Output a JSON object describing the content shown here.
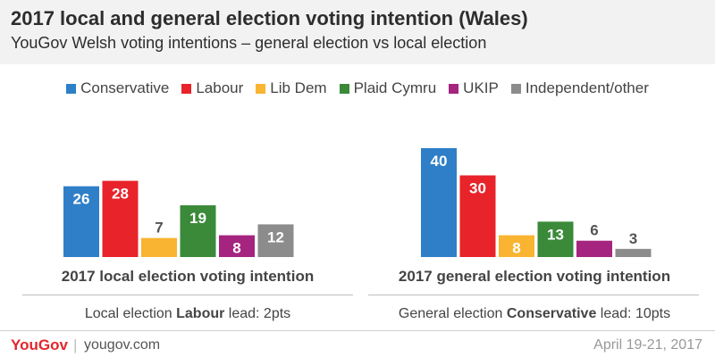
{
  "header": {
    "title": "2017 local and general election voting intention (Wales)",
    "subtitle": "YouGov Welsh voting intentions – general election vs local election"
  },
  "legend": [
    {
      "label": "Conservative",
      "color": "#2e7fc8"
    },
    {
      "label": "Labour",
      "color": "#e8232a"
    },
    {
      "label": "Lib Dem",
      "color": "#f9b431"
    },
    {
      "label": "Plaid Cymru",
      "color": "#3a8a3a"
    },
    {
      "label": "UKIP",
      "color": "#a5247f"
    },
    {
      "label": "Independent/other",
      "color": "#8c8c8c"
    }
  ],
  "groups": [
    {
      "title": "2017 local election voting intention",
      "note_prefix": "Local election ",
      "note_party": "Labour",
      "note_suffix": " lead: 2pts"
    },
    {
      "title": "2017 general election voting intention",
      "note_prefix": "General election ",
      "note_party": "Conservative",
      "note_suffix": " lead: 10pts"
    }
  ],
  "chart_data": {
    "type": "bar",
    "title": "2017 local and general election voting intention (Wales)",
    "categories": [
      "2017 local election voting intention",
      "2017 general election voting intention"
    ],
    "series": [
      {
        "name": "Conservative",
        "values": [
          26,
          40
        ],
        "color": "#2e7fc8"
      },
      {
        "name": "Labour",
        "values": [
          28,
          30
        ],
        "color": "#e8232a"
      },
      {
        "name": "Lib Dem",
        "values": [
          7,
          8
        ],
        "color": "#f9b431"
      },
      {
        "name": "Plaid Cymru",
        "values": [
          19,
          13
        ],
        "color": "#3a8a3a"
      },
      {
        "name": "UKIP",
        "values": [
          8,
          6
        ],
        "color": "#a5247f"
      },
      {
        "name": "Independent/other",
        "values": [
          12,
          3
        ],
        "color": "#8c8c8c"
      }
    ],
    "ylim": [
      0,
      40
    ],
    "grid": false,
    "legend_position": "top"
  },
  "footer": {
    "logo": "YouGov",
    "separator": "|",
    "site": "yougov.com",
    "date": "April 19-21, 2017"
  }
}
